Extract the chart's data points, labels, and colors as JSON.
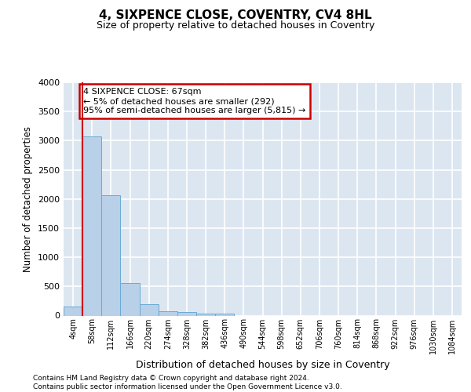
{
  "title": "4, SIXPENCE CLOSE, COVENTRY, CV4 8HL",
  "subtitle": "Size of property relative to detached houses in Coventry",
  "xlabel": "Distribution of detached houses by size in Coventry",
  "ylabel": "Number of detached properties",
  "bar_labels": [
    "4sqm",
    "58sqm",
    "112sqm",
    "166sqm",
    "220sqm",
    "274sqm",
    "328sqm",
    "382sqm",
    "436sqm",
    "490sqm",
    "544sqm",
    "598sqm",
    "652sqm",
    "706sqm",
    "760sqm",
    "814sqm",
    "868sqm",
    "922sqm",
    "976sqm",
    "1030sqm",
    "1084sqm"
  ],
  "bar_heights": [
    150,
    3070,
    2070,
    560,
    200,
    80,
    55,
    40,
    40,
    0,
    0,
    0,
    0,
    0,
    0,
    0,
    0,
    0,
    0,
    0,
    0
  ],
  "bar_color": "#b8d0e8",
  "bar_edge_color": "#6aaad4",
  "background_color": "#dce6f1",
  "grid_color": "#ffffff",
  "vline_color": "#cc0000",
  "annotation_text": "4 SIXPENCE CLOSE: 67sqm\n← 5% of detached houses are smaller (292)\n95% of semi-detached houses are larger (5,815) →",
  "annotation_box_color": "#cc0000",
  "ylim": [
    0,
    4000
  ],
  "yticks": [
    0,
    500,
    1000,
    1500,
    2000,
    2500,
    3000,
    3500,
    4000
  ],
  "footer_line1": "Contains HM Land Registry data © Crown copyright and database right 2024.",
  "footer_line2": "Contains public sector information licensed under the Open Government Licence v3.0."
}
